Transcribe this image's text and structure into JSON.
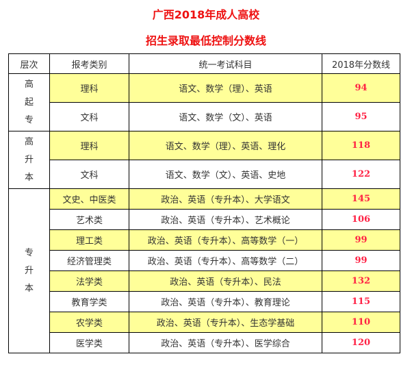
{
  "title_line1": "广西2018年成人高校",
  "title_line2": "招生录取最低控制分数线",
  "colors": {
    "title": "#ee1111",
    "score": "#ff2244",
    "highlight": "#ffff99"
  },
  "headers": [
    "层次",
    "报考类别",
    "统一考试科目",
    "2018年分数线"
  ],
  "groups": [
    {
      "level": [
        "高",
        "起",
        "专"
      ],
      "rows": [
        {
          "category": "理科",
          "subjects": "语文、数学（理）、英语",
          "score": "94",
          "highlight": true
        },
        {
          "category": "文科",
          "subjects": "语文、数学（文）、英语",
          "score": "95",
          "highlight": false
        }
      ]
    },
    {
      "level": [
        "高",
        "升",
        "本"
      ],
      "rows": [
        {
          "category": "理科",
          "subjects": "语文、数学（理）、英语、理化",
          "score": "118",
          "highlight": true
        },
        {
          "category": "文科",
          "subjects": "语文、数学（文）、英语、史地",
          "score": "122",
          "highlight": false
        }
      ]
    },
    {
      "level": [
        "专",
        "升",
        "本"
      ],
      "rows": [
        {
          "category": "文史、中医类",
          "subjects": "政治、英语（专升本）、大学语文",
          "score": "145",
          "highlight": true
        },
        {
          "category": "艺术类",
          "subjects": "政治、英语（专升本）、艺术概论",
          "score": "106",
          "highlight": false
        },
        {
          "category": "理工类",
          "subjects": "政治、英语（专升本）、高等数学（一）",
          "score": "99",
          "highlight": true
        },
        {
          "category": "经济管理类",
          "subjects": "政治、英语（专升本）、高等数学（二）",
          "score": "99",
          "highlight": false
        },
        {
          "category": "法学类",
          "subjects": "政治、英语（专升本）、民法",
          "score": "132",
          "highlight": true
        },
        {
          "category": "教育学类",
          "subjects": "政治、英语（专升本）、教育理论",
          "score": "115",
          "highlight": false
        },
        {
          "category": "农学类",
          "subjects": "政治、英语（专升本）、生态学基础",
          "score": "110",
          "highlight": true
        },
        {
          "category": "医学类",
          "subjects": "政治、英语（专升本）、医学综合",
          "score": "120",
          "highlight": false
        }
      ]
    }
  ]
}
